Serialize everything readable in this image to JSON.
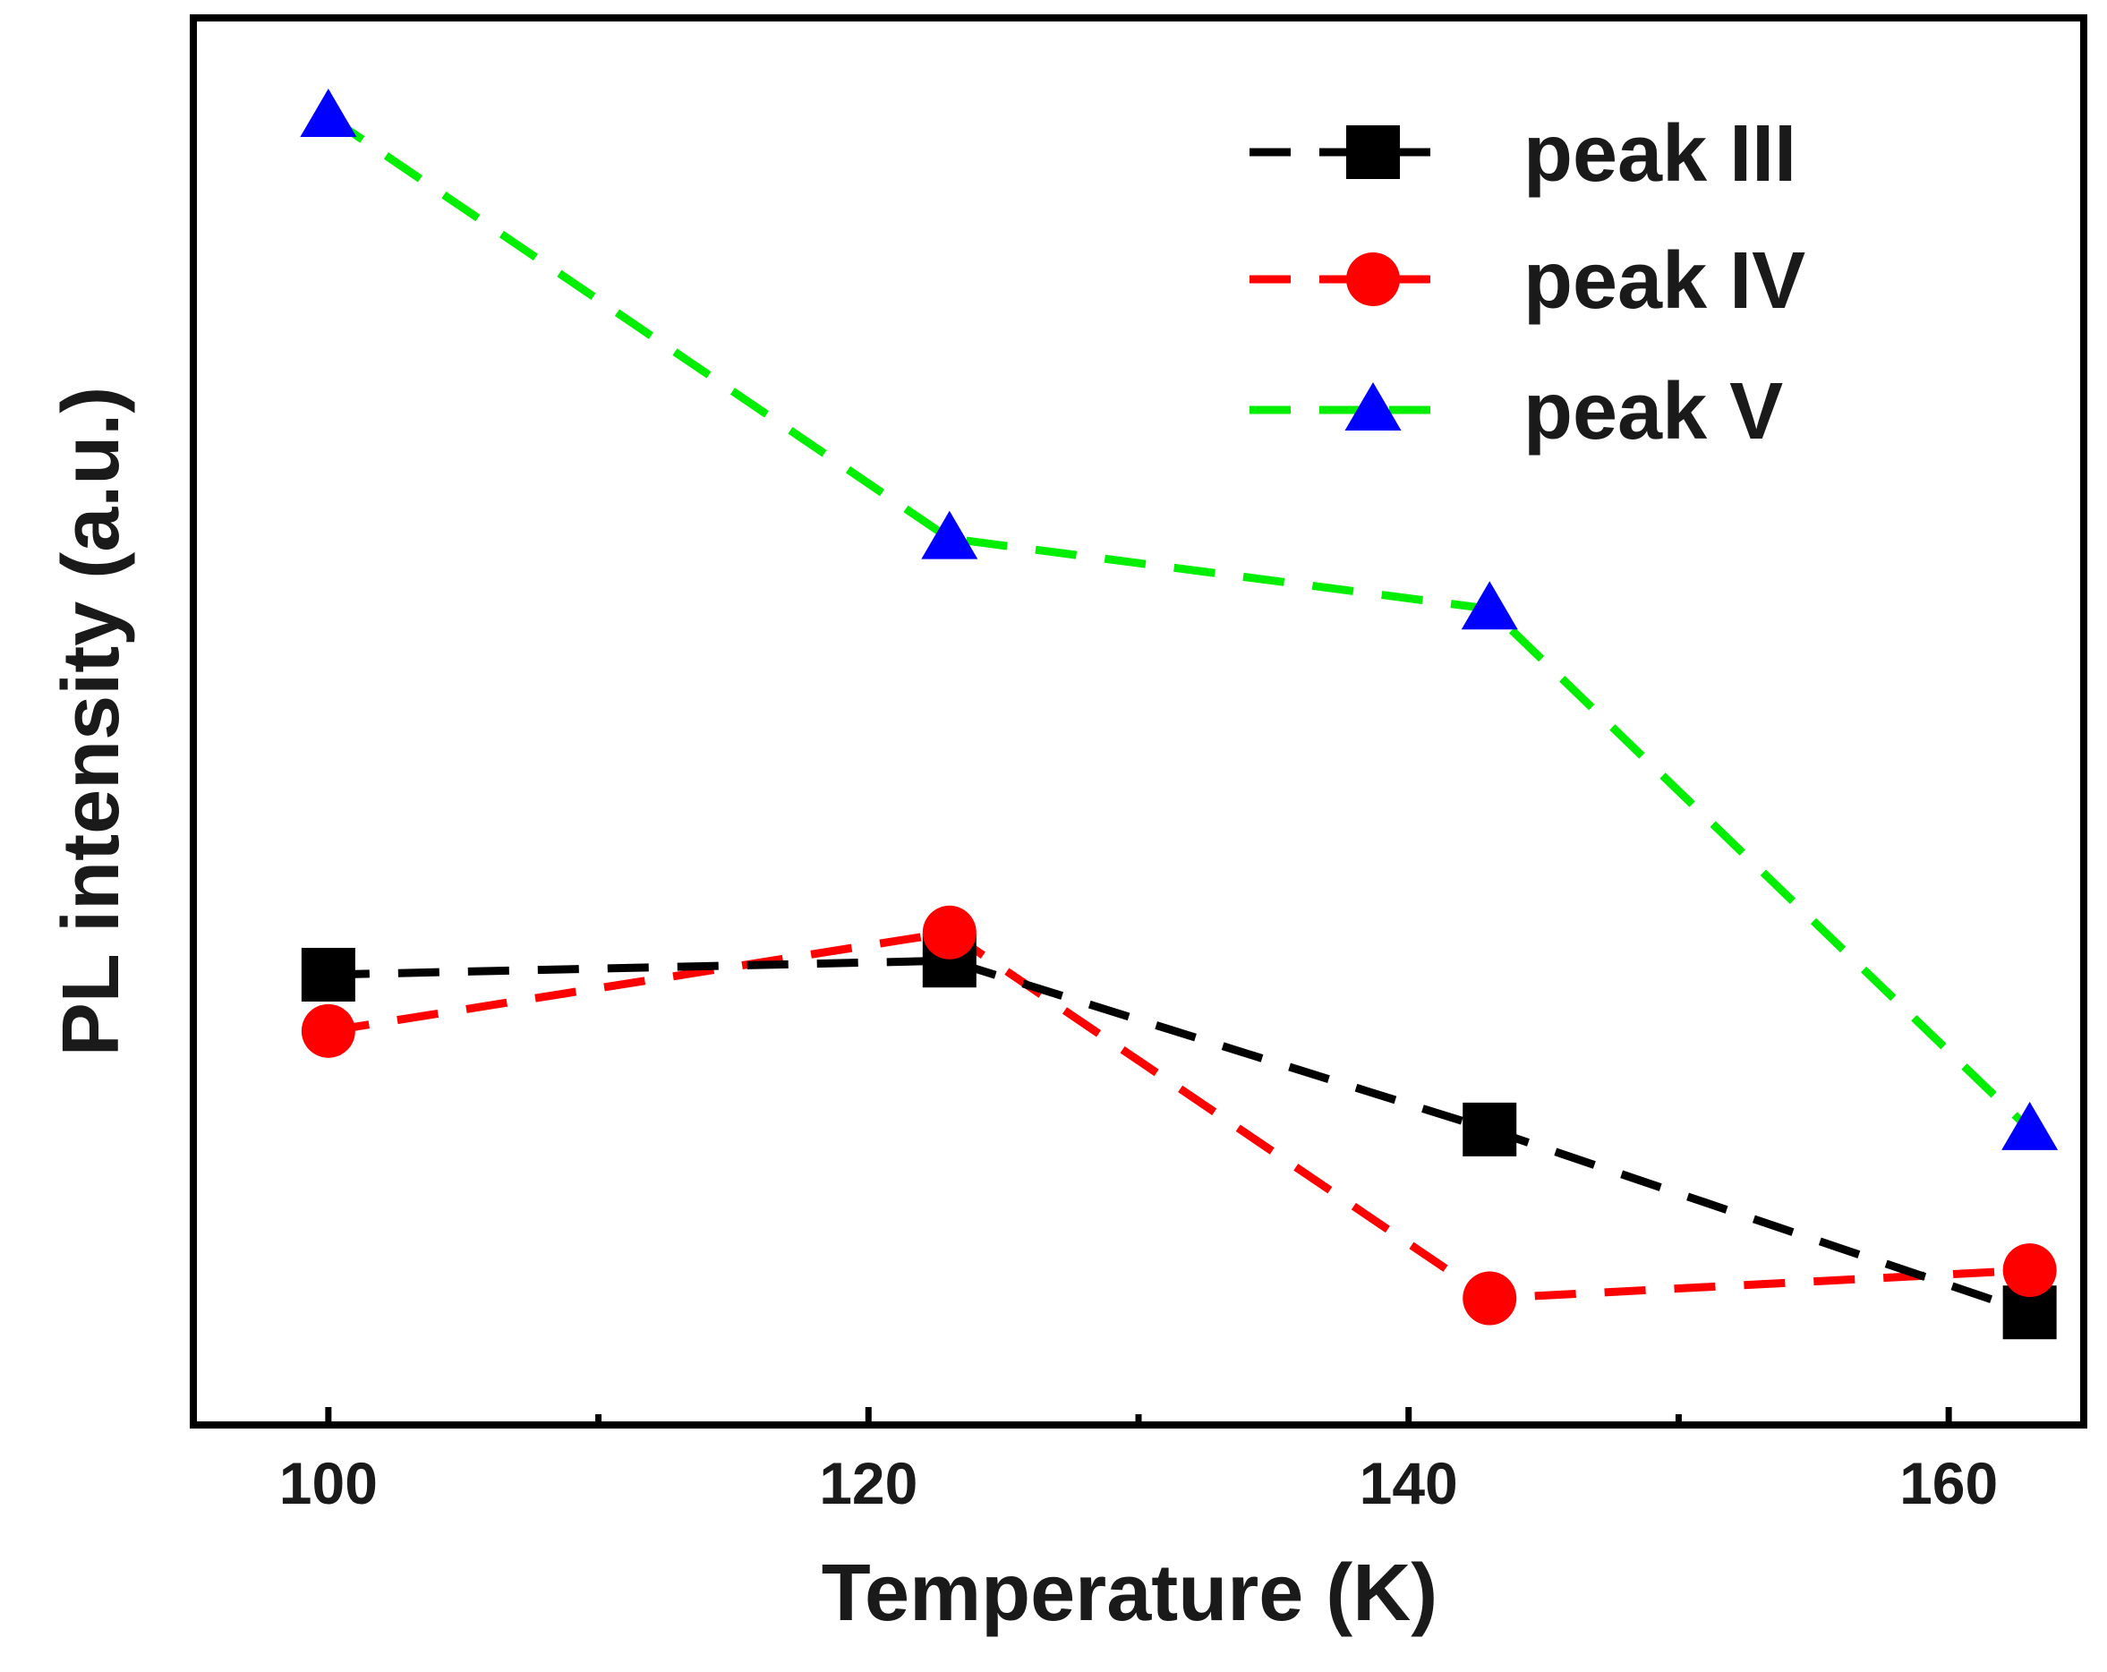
{
  "chart_data": {
    "type": "line",
    "xlabel": "Temperature (K)",
    "ylabel": "PL intensity (a.u.)",
    "xlim": [
      95,
      165
    ],
    "ylim": [
      0,
      1
    ],
    "x_ticks": [
      100,
      120,
      140,
      160
    ],
    "x_minor_ticks": [
      110,
      130,
      150
    ],
    "y_ticks_visible": false,
    "grid": false,
    "legend_position": "top-right",
    "series": [
      {
        "name": "peak III",
        "color": "#000000",
        "marker": "square",
        "x": [
          100,
          123,
          143,
          163
        ],
        "y": [
          0.32,
          0.33,
          0.21,
          0.08
        ]
      },
      {
        "name": "peak IV",
        "color": "#ff0000",
        "marker": "circle",
        "x": [
          100,
          123,
          143,
          163
        ],
        "y": [
          0.28,
          0.35,
          0.09,
          0.11
        ]
      },
      {
        "name": "peak V",
        "color": "#00ee00",
        "marker_color": "#0000ff",
        "marker": "triangle",
        "x": [
          100,
          123,
          143,
          163
        ],
        "y": [
          0.93,
          0.63,
          0.58,
          0.21
        ]
      }
    ]
  }
}
